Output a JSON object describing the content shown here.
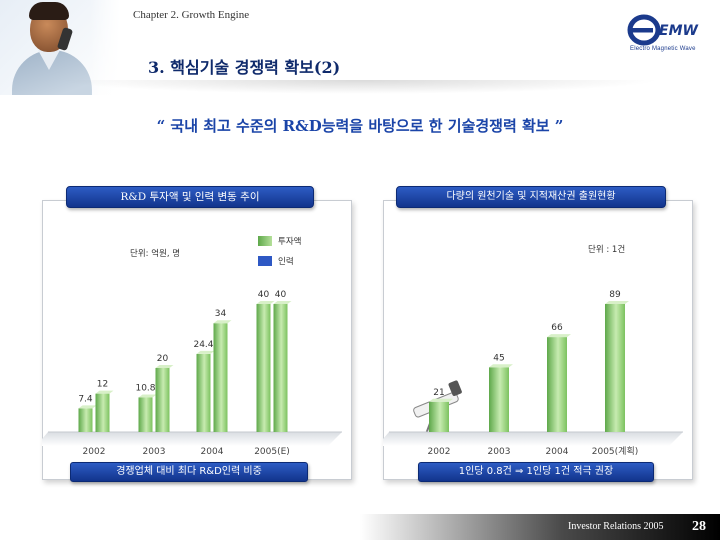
{
  "header": {
    "chapter": "Chapter 2. Growth Engine",
    "logo_text": "EMW",
    "logo_sub": "Electro Magnetic Wave",
    "title": "3. 핵심기술 경쟁력 확보(2)"
  },
  "tagline": "“ 국내 최고 수준의 R&D능력을 바탕으로 한 기술경쟁력 확보 ”",
  "left_panel": {
    "heading": "R&D 투자액 및 인력 변동 추이",
    "unit": "단위: 억원, 명",
    "legend": [
      {
        "label": "투자액",
        "color": "#8fc96f"
      },
      {
        "label": "인력",
        "color": "#2e58c4"
      }
    ],
    "footnote": "경쟁업체 대비 최다 R&D인력 비중"
  },
  "right_panel": {
    "heading": "다량의 원천기술 및 지적재산권 출원현황",
    "unit": "단위 : 1건",
    "footnote": "1인당 0.8건 ⇒  1인당 1건 적극 권장"
  },
  "chart_data": [
    {
      "type": "bar",
      "categories": [
        "2002",
        "2003",
        "2004",
        "2005(E)"
      ],
      "series": [
        {
          "name": "투자액",
          "values": [
            7.4,
            10.8,
            24.4,
            40
          ],
          "labels": [
            "7.4",
            "10.8",
            "24.4",
            "40"
          ],
          "color": "#8fc96f"
        },
        {
          "name": "인력",
          "values": [
            12,
            20,
            34,
            40
          ],
          "labels": [
            "12",
            "20",
            "34",
            "40"
          ],
          "color": "#8fc96f"
        }
      ]
    },
    {
      "type": "bar",
      "categories": [
        "2002",
        "2003",
        "2004",
        "2005(계획)"
      ],
      "series": [
        {
          "name": "",
          "values": [
            21,
            45,
            66,
            89
          ],
          "labels": [
            "21",
            "45",
            "66",
            "89"
          ],
          "color": "#8fc96f"
        }
      ]
    }
  ],
  "footer": {
    "text": "Investor Relations 2005",
    "page": "28"
  }
}
